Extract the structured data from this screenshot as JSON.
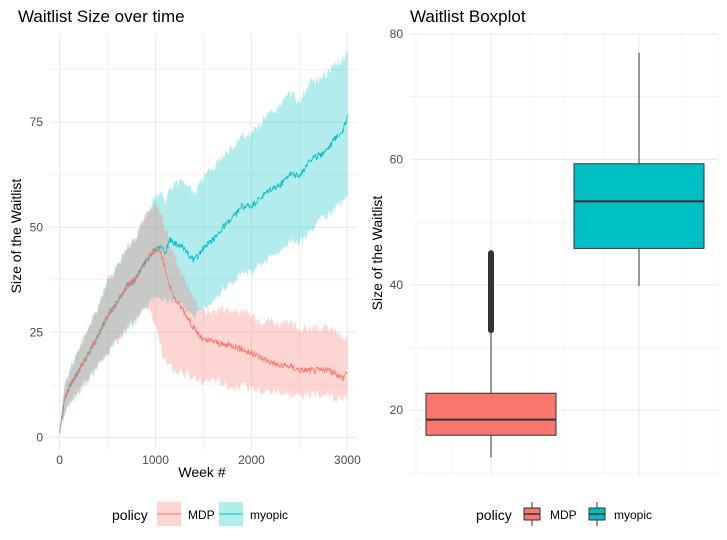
{
  "chart_data": [
    {
      "type": "line",
      "title": "Waitlist Size over time",
      "xlabel": "Week #",
      "ylabel": "Size of the Waitlist",
      "xlim": [
        -100,
        3100
      ],
      "ylim": [
        -3,
        96
      ],
      "x_ticks": [
        0,
        1000,
        2000,
        3000
      ],
      "y_ticks": [
        0,
        25,
        50,
        75
      ],
      "x_tick_labels": [
        "0",
        "1000",
        "2000",
        "3000"
      ],
      "y_tick_labels": [
        "0",
        "25",
        "50",
        "75"
      ],
      "grid": true,
      "legend": {
        "title": "policy",
        "position": "bottom",
        "entries": [
          "MDP",
          "myopic"
        ]
      },
      "series": [
        {
          "name": "MDP",
          "color": "#F8766D",
          "x": [
            0,
            50,
            100,
            200,
            300,
            400,
            500,
            600,
            700,
            800,
            900,
            1000,
            1050,
            1100,
            1150,
            1200,
            1300,
            1400,
            1500,
            1600,
            1700,
            1800,
            1900,
            2000,
            2100,
            2200,
            2300,
            2400,
            2500,
            2600,
            2700,
            2800,
            2900,
            2950,
            3000
          ],
          "y": [
            1,
            9,
            12,
            16,
            20,
            24,
            29,
            32,
            36,
            38,
            42,
            45,
            44,
            40,
            36,
            33,
            30,
            26,
            23,
            23,
            22,
            22,
            21,
            20,
            19,
            18,
            17,
            17,
            16,
            16,
            16,
            16,
            15,
            14,
            16
          ],
          "lower": [
            1,
            6,
            8,
            11,
            14,
            17,
            20,
            23,
            26,
            28,
            31,
            27,
            22,
            18,
            17,
            16,
            15,
            14,
            13,
            14,
            13,
            12,
            12,
            12,
            11,
            11,
            11,
            10,
            10,
            10,
            10,
            10,
            9,
            9,
            10
          ],
          "upper": [
            1,
            12,
            16,
            21,
            26,
            31,
            37,
            41,
            45,
            48,
            53,
            55,
            54,
            50,
            46,
            43,
            38,
            33,
            30,
            30,
            31,
            30,
            30,
            29,
            28,
            28,
            27,
            27,
            26,
            26,
            26,
            26,
            25,
            23,
            24
          ]
        },
        {
          "name": "myopic",
          "color": "#00BFC4",
          "x": [
            0,
            50,
            100,
            200,
            300,
            400,
            500,
            600,
            700,
            800,
            900,
            1000,
            1050,
            1100,
            1150,
            1200,
            1300,
            1400,
            1500,
            1600,
            1700,
            1800,
            1900,
            2000,
            2100,
            2200,
            2300,
            2400,
            2500,
            2600,
            2700,
            2800,
            2900,
            2950,
            3000
          ],
          "y": [
            1,
            9,
            12,
            16,
            20,
            24,
            29,
            32,
            36,
            38,
            42,
            45,
            46,
            44,
            47,
            46,
            45,
            42,
            45,
            47,
            50,
            52,
            55,
            55,
            57,
            59,
            60,
            63,
            62,
            66,
            67,
            69,
            72,
            73,
            76
          ],
          "lower": [
            1,
            6,
            8,
            11,
            14,
            17,
            20,
            23,
            26,
            28,
            31,
            34,
            33,
            32,
            33,
            32,
            31,
            29,
            31,
            33,
            35,
            37,
            39,
            39,
            41,
            43,
            44,
            47,
            46,
            49,
            51,
            53,
            55,
            56,
            58
          ],
          "upper": [
            1,
            12,
            16,
            21,
            26,
            31,
            37,
            41,
            45,
            48,
            53,
            57,
            58,
            56,
            59,
            60,
            61,
            58,
            62,
            64,
            67,
            69,
            72,
            72,
            75,
            77,
            79,
            82,
            80,
            84,
            85,
            87,
            89,
            90,
            92
          ]
        }
      ]
    },
    {
      "type": "boxplot",
      "title": "Waitlist Boxplot",
      "xlabel": "",
      "ylabel": "Size of the Waitlist",
      "ylim": [
        9.5,
        80
      ],
      "y_ticks": [
        20,
        40,
        60,
        80
      ],
      "y_tick_labels": [
        "20",
        "40",
        "60",
        "80"
      ],
      "grid": true,
      "legend": {
        "title": "policy",
        "position": "bottom",
        "entries": [
          "MDP",
          "myopic"
        ]
      },
      "series": [
        {
          "name": "MDP",
          "color": "#F8766D",
          "whisker_low": 12.5,
          "q1": 16,
          "median": 18.5,
          "q3": 22.7,
          "whisker_high": 32.6,
          "outliers_range": [
            32.6,
            45.2
          ]
        },
        {
          "name": "myopic",
          "color": "#00BFC4",
          "whisker_low": 39.8,
          "q1": 45.8,
          "median": 53.3,
          "q3": 59.3,
          "whisker_high": 77
        }
      ]
    }
  ]
}
